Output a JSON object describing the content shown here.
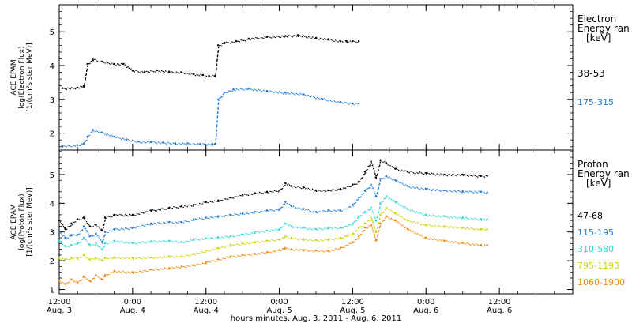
{
  "chart_data": [
    {
      "type": "scatter",
      "panel": "electron",
      "ylabel": [
        "ACE EPAM",
        "log(Electron Flux)",
        "[1/(cm²s ster MeV)]"
      ],
      "ylim": [
        1.5,
        5.8
      ],
      "yticks": [
        2,
        3,
        4,
        5
      ],
      "xlim": [
        0,
        84
      ],
      "legend_title": [
        "Electron",
        "Energy ran",
        "[keV]"
      ],
      "series": [
        {
          "name": "38-53",
          "color": "#000000",
          "points": [
            [
              0.5,
              3.33
            ],
            [
              3,
              3.35
            ],
            [
              4,
              3.4
            ],
            [
              4.6,
              4.05
            ],
            [
              5.5,
              4.18
            ],
            [
              7,
              4.12
            ],
            [
              9,
              4.05
            ],
            [
              10.5,
              4.05
            ],
            [
              12,
              3.85
            ],
            [
              14,
              3.82
            ],
            [
              16,
              3.86
            ],
            [
              18,
              3.82
            ],
            [
              20,
              3.8
            ],
            [
              22,
              3.75
            ],
            [
              23.5,
              3.72
            ],
            [
              24.5,
              3.7
            ],
            [
              25.5,
              3.7
            ],
            [
              26,
              4.6
            ],
            [
              27,
              4.68
            ],
            [
              29,
              4.72
            ],
            [
              31,
              4.8
            ],
            [
              34,
              4.85
            ],
            [
              37,
              4.88
            ],
            [
              39,
              4.9
            ],
            [
              42,
              4.82
            ],
            [
              44,
              4.78
            ],
            [
              46,
              4.72
            ],
            [
              47,
              4.72
            ],
            [
              48,
              4.72
            ],
            [
              49,
              4.72
            ]
          ]
        },
        {
          "name": "175-315",
          "color": "#1f7ad6",
          "points": [
            [
              0.5,
              1.62
            ],
            [
              3,
              1.65
            ],
            [
              4,
              1.7
            ],
            [
              4.6,
              1.9
            ],
            [
              5.5,
              2.1
            ],
            [
              7,
              2.02
            ],
            [
              9,
              1.9
            ],
            [
              11,
              1.82
            ],
            [
              13,
              1.75
            ],
            [
              15,
              1.75
            ],
            [
              17,
              1.72
            ],
            [
              19,
              1.7
            ],
            [
              21,
              1.7
            ],
            [
              23,
              1.68
            ],
            [
              25,
              1.68
            ],
            [
              25.5,
              1.68
            ],
            [
              26,
              3.0
            ],
            [
              27,
              3.2
            ],
            [
              28.5,
              3.3
            ],
            [
              31,
              3.32
            ],
            [
              34,
              3.25
            ],
            [
              37,
              3.2
            ],
            [
              40,
              3.15
            ],
            [
              43,
              3.02
            ],
            [
              46,
              2.92
            ],
            [
              48,
              2.88
            ],
            [
              49,
              2.88
            ]
          ]
        }
      ]
    },
    {
      "type": "scatter",
      "panel": "proton",
      "ylabel": [
        "ACE EPAM",
        "log(Proton Flux)",
        "[1/(cm²s ster MeV)]"
      ],
      "ylim": [
        0.85,
        5.85
      ],
      "yticks": [
        1,
        2,
        3,
        4,
        5
      ],
      "xlim": [
        0,
        84
      ],
      "xlabel": "hours:minutes, Aug.  3, 2011 - Aug.  6, 2011",
      "xticks": [
        {
          "x": 0,
          "time": "12:00",
          "date": "Aug. 3"
        },
        {
          "x": 12,
          "time": "0:00",
          "date": "Aug. 4"
        },
        {
          "x": 24,
          "time": "12:00",
          "date": "Aug. 4"
        },
        {
          "x": 36,
          "time": "0:00",
          "date": "Aug. 5"
        },
        {
          "x": 48,
          "time": "12:00",
          "date": "Aug. 5"
        },
        {
          "x": 60,
          "time": "0:00",
          "date": "Aug. 6"
        },
        {
          "x": 72,
          "time": "12:00",
          "date": "Aug. 6"
        }
      ],
      "legend_title": [
        "Proton",
        "Energy ran",
        "[keV]"
      ],
      "series": [
        {
          "name": "47-68",
          "color": "#000000",
          "points": [
            [
              0,
              3.4
            ],
            [
              1,
              3.1
            ],
            [
              2,
              3.3
            ],
            [
              3,
              3.45
            ],
            [
              4,
              3.5
            ],
            [
              5,
              3.2
            ],
            [
              6,
              3.25
            ],
            [
              7,
              3.05
            ],
            [
              7.5,
              3.5
            ],
            [
              9,
              3.6
            ],
            [
              12,
              3.6
            ],
            [
              15,
              3.75
            ],
            [
              18,
              3.85
            ],
            [
              20,
              3.9
            ],
            [
              22,
              3.95
            ],
            [
              24,
              4.05
            ],
            [
              26,
              4.1
            ],
            [
              28,
              4.2
            ],
            [
              30,
              4.3
            ],
            [
              32,
              4.35
            ],
            [
              34,
              4.4
            ],
            [
              36,
              4.45
            ],
            [
              37,
              4.7
            ],
            [
              38,
              4.6
            ],
            [
              40,
              4.55
            ],
            [
              42,
              4.45
            ],
            [
              44,
              4.45
            ],
            [
              46,
              4.5
            ],
            [
              48,
              4.65
            ],
            [
              49,
              4.75
            ],
            [
              50,
              5.1
            ],
            [
              51,
              5.45
            ],
            [
              51.8,
              4.9
            ],
            [
              52.5,
              5.5
            ],
            [
              53.5,
              5.4
            ],
            [
              55,
              5.2
            ],
            [
              57,
              5.1
            ],
            [
              60,
              5.05
            ],
            [
              63,
              5.0
            ],
            [
              66,
              5.0
            ],
            [
              69,
              4.95
            ],
            [
              70,
              4.95
            ]
          ]
        },
        {
          "name": "115-195",
          "color": "#1f7ad6",
          "points": [
            [
              0,
              3.0
            ],
            [
              1,
              2.8
            ],
            [
              2,
              2.9
            ],
            [
              3,
              2.9
            ],
            [
              4,
              3.2
            ],
            [
              5,
              2.85
            ],
            [
              6,
              2.95
            ],
            [
              7,
              2.65
            ],
            [
              7.5,
              3.0
            ],
            [
              9,
              3.1
            ],
            [
              12,
              3.15
            ],
            [
              15,
              3.3
            ],
            [
              18,
              3.35
            ],
            [
              20,
              3.35
            ],
            [
              22,
              3.45
            ],
            [
              24,
              3.5
            ],
            [
              26,
              3.55
            ],
            [
              28,
              3.6
            ],
            [
              30,
              3.65
            ],
            [
              32,
              3.7
            ],
            [
              34,
              3.75
            ],
            [
              36,
              3.8
            ],
            [
              37,
              4.05
            ],
            [
              38,
              3.9
            ],
            [
              40,
              3.8
            ],
            [
              42,
              3.7
            ],
            [
              44,
              3.75
            ],
            [
              46,
              3.75
            ],
            [
              48,
              3.95
            ],
            [
              49,
              4.2
            ],
            [
              50,
              4.45
            ],
            [
              51,
              4.65
            ],
            [
              51.8,
              4.25
            ],
            [
              52.5,
              4.85
            ],
            [
              53.5,
              4.95
            ],
            [
              55,
              4.8
            ],
            [
              57,
              4.6
            ],
            [
              60,
              4.5
            ],
            [
              63,
              4.45
            ],
            [
              66,
              4.42
            ],
            [
              69,
              4.4
            ],
            [
              70,
              4.38
            ]
          ]
        },
        {
          "name": "310-580",
          "color": "#30d6d6",
          "points": [
            [
              0,
              2.7
            ],
            [
              1,
              2.5
            ],
            [
              2,
              2.55
            ],
            [
              3,
              2.6
            ],
            [
              4,
              2.8
            ],
            [
              5,
              2.55
            ],
            [
              6,
              2.6
            ],
            [
              7,
              2.4
            ],
            [
              7.5,
              2.6
            ],
            [
              9,
              2.7
            ],
            [
              12,
              2.62
            ],
            [
              15,
              2.68
            ],
            [
              18,
              2.7
            ],
            [
              20,
              2.65
            ],
            [
              22,
              2.75
            ],
            [
              24,
              2.78
            ],
            [
              26,
              2.82
            ],
            [
              28,
              2.86
            ],
            [
              30,
              2.92
            ],
            [
              32,
              3.0
            ],
            [
              34,
              3.05
            ],
            [
              36,
              3.1
            ],
            [
              37,
              3.3
            ],
            [
              38,
              3.2
            ],
            [
              40,
              3.15
            ],
            [
              42,
              3.1
            ],
            [
              44,
              3.15
            ],
            [
              46,
              3.15
            ],
            [
              48,
              3.3
            ],
            [
              49,
              3.55
            ],
            [
              50,
              3.7
            ],
            [
              51,
              3.85
            ],
            [
              51.8,
              3.4
            ],
            [
              52.5,
              4.0
            ],
            [
              53.5,
              4.25
            ],
            [
              55,
              4.05
            ],
            [
              57,
              3.8
            ],
            [
              60,
              3.6
            ],
            [
              63,
              3.55
            ],
            [
              66,
              3.5
            ],
            [
              69,
              3.45
            ],
            [
              70,
              3.45
            ]
          ]
        },
        {
          "name": "795-1193",
          "color": "#c8d600",
          "points": [
            [
              0,
              2.1
            ],
            [
              1,
              2.05
            ],
            [
              2,
              2.1
            ],
            [
              3,
              2.1
            ],
            [
              4,
              2.2
            ],
            [
              5,
              2.05
            ],
            [
              6,
              2.1
            ],
            [
              7,
              2.02
            ],
            [
              7.5,
              2.1
            ],
            [
              9,
              2.12
            ],
            [
              12,
              2.1
            ],
            [
              15,
              2.12
            ],
            [
              18,
              2.15
            ],
            [
              20,
              2.15
            ],
            [
              22,
              2.25
            ],
            [
              24,
              2.35
            ],
            [
              26,
              2.45
            ],
            [
              28,
              2.55
            ],
            [
              30,
              2.6
            ],
            [
              32,
              2.65
            ],
            [
              34,
              2.7
            ],
            [
              36,
              2.75
            ],
            [
              37,
              2.85
            ],
            [
              38,
              2.8
            ],
            [
              40,
              2.75
            ],
            [
              42,
              2.72
            ],
            [
              44,
              2.75
            ],
            [
              46,
              2.8
            ],
            [
              48,
              2.95
            ],
            [
              49,
              3.15
            ],
            [
              50,
              3.3
            ],
            [
              51,
              3.5
            ],
            [
              51.8,
              3.0
            ],
            [
              52.5,
              3.6
            ],
            [
              53.5,
              3.85
            ],
            [
              55,
              3.65
            ],
            [
              57,
              3.4
            ],
            [
              60,
              3.25
            ],
            [
              63,
              3.2
            ],
            [
              66,
              3.15
            ],
            [
              69,
              3.1
            ],
            [
              70,
              3.1
            ]
          ]
        },
        {
          "name": "1060-1900",
          "color": "#ee8a10",
          "points": [
            [
              0,
              1.3
            ],
            [
              1,
              1.2
            ],
            [
              2,
              1.35
            ],
            [
              3,
              1.25
            ],
            [
              4,
              1.45
            ],
            [
              5,
              1.3
            ],
            [
              6,
              1.5
            ],
            [
              7,
              1.35
            ],
            [
              7.5,
              1.5
            ],
            [
              9,
              1.65
            ],
            [
              12,
              1.6
            ],
            [
              15,
              1.7
            ],
            [
              18,
              1.75
            ],
            [
              20,
              1.8
            ],
            [
              22,
              1.85
            ],
            [
              24,
              1.95
            ],
            [
              26,
              2.05
            ],
            [
              28,
              2.15
            ],
            [
              30,
              2.2
            ],
            [
              32,
              2.25
            ],
            [
              34,
              2.3
            ],
            [
              36,
              2.38
            ],
            [
              37,
              2.45
            ],
            [
              38,
              2.4
            ],
            [
              40,
              2.38
            ],
            [
              42,
              2.35
            ],
            [
              44,
              2.35
            ],
            [
              46,
              2.45
            ],
            [
              48,
              2.65
            ],
            [
              49,
              2.85
            ],
            [
              50,
              3.15
            ],
            [
              51,
              3.25
            ],
            [
              51.8,
              2.7
            ],
            [
              52.5,
              3.3
            ],
            [
              53.5,
              3.55
            ],
            [
              55,
              3.4
            ],
            [
              57,
              3.1
            ],
            [
              60,
              2.8
            ],
            [
              63,
              2.7
            ],
            [
              66,
              2.62
            ],
            [
              69,
              2.55
            ],
            [
              70,
              2.55
            ]
          ]
        }
      ]
    }
  ]
}
